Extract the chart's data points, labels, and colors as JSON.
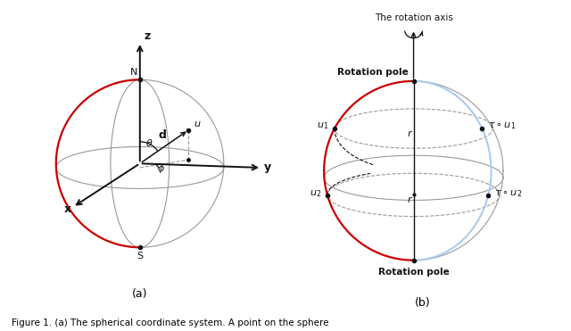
{
  "fig_width": 6.4,
  "fig_height": 3.71,
  "dpi": 100,
  "bg_color": "#ffffff",
  "sphere_color": "#999999",
  "sphere_lw": 0.8,
  "red_color": "#cc0000",
  "blue_color": "#aaccee",
  "axis_color": "#111111",
  "dark_color": "#333333",
  "caption_a": "(a)",
  "caption_b": "(b)",
  "figure_caption": "Figure 1. (a) The spherical coordinate system. A point on the sphere"
}
